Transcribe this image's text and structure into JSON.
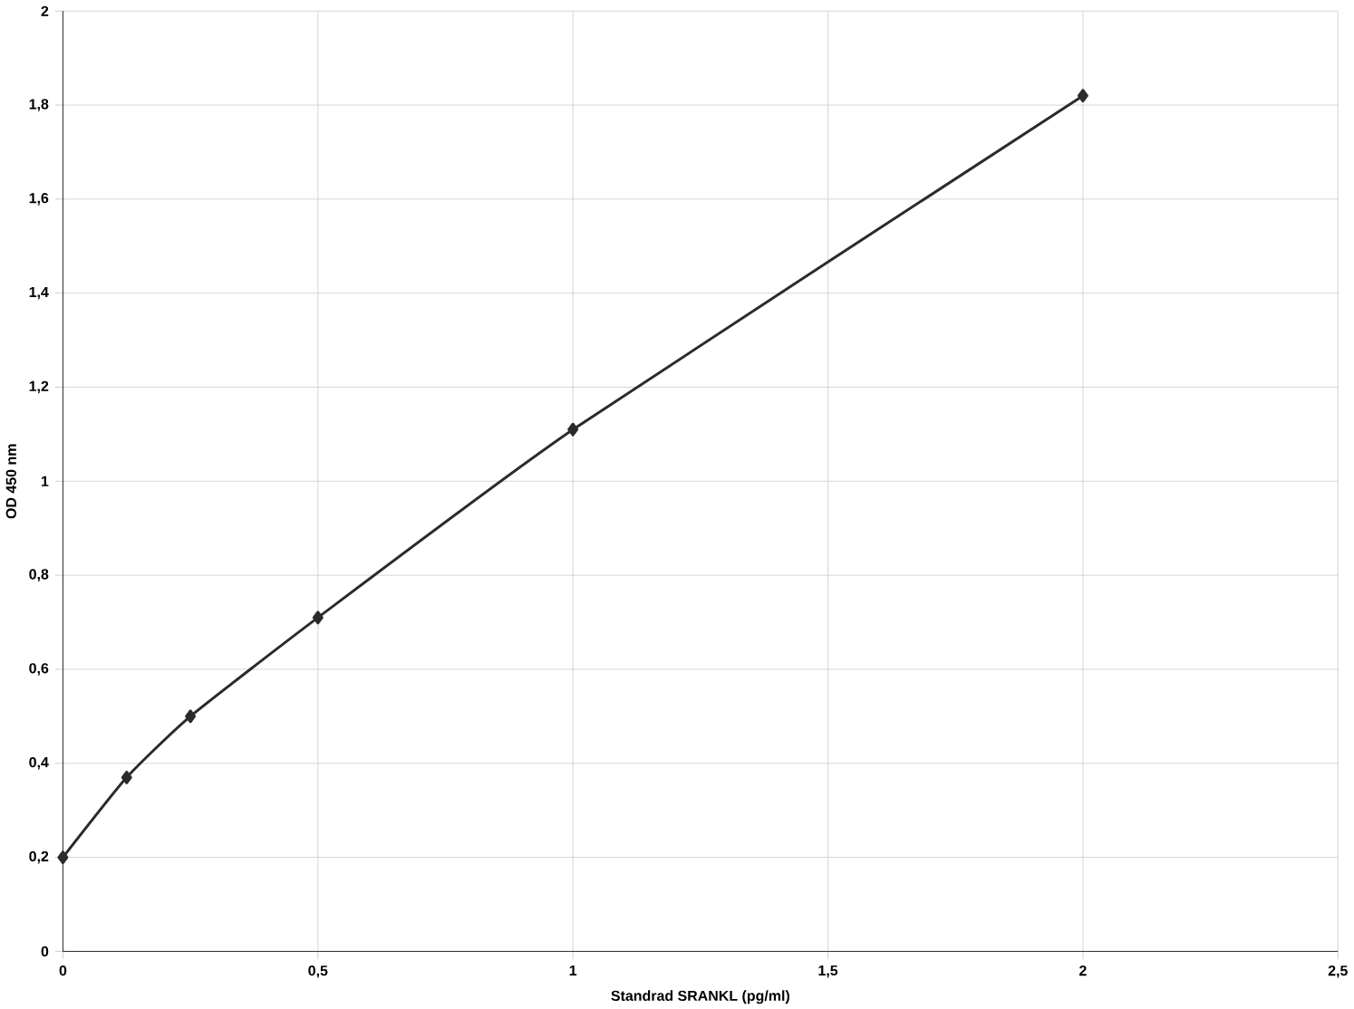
{
  "chart_data": {
    "type": "line",
    "xlabel": "Standrad SRANKL (pg/ml)",
    "ylabel": "OD 450 nm",
    "x": [
      0,
      0.125,
      0.25,
      0.5,
      1,
      2
    ],
    "series": [
      {
        "color": "#2b2b2b",
        "values": [
          0.2,
          0.37,
          0.5,
          0.71,
          1.11,
          1.82
        ]
      }
    ],
    "xlim": [
      0,
      2.5
    ],
    "ylim": [
      0,
      2
    ],
    "xticks": [
      0,
      {
        "value": 0.5,
        "label": "0,5"
      },
      1,
      {
        "value": 1.5,
        "label": "1,5"
      },
      2,
      {
        "value": 2.5,
        "label": "2,5"
      }
    ],
    "yticks": [
      0,
      {
        "value": 0.2,
        "label": "0,2"
      },
      {
        "value": 0.4,
        "label": "0,4"
      },
      {
        "value": 0.6,
        "label": "0,6"
      },
      {
        "value": 0.8,
        "label": "0,8"
      },
      1,
      {
        "value": 1.2,
        "label": "1,2"
      },
      {
        "value": 1.4,
        "label": "1,4"
      },
      {
        "value": 1.6,
        "label": "1,6"
      },
      {
        "value": 1.8,
        "label": "1,8"
      },
      2
    ],
    "grid": true,
    "marker": "diamond",
    "line_style": "solid"
  }
}
